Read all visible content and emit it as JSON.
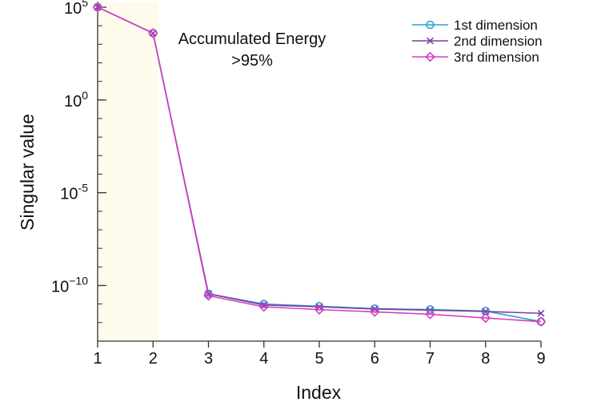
{
  "chart_data": {
    "type": "line",
    "xlabel": "Index",
    "ylabel": "Singular value",
    "y_scale": "log",
    "xlim": [
      1,
      9
    ],
    "ylim_exp": [
      -13,
      5.3
    ],
    "x_ticks": [
      "1",
      "2",
      "3",
      "4",
      "5",
      "6",
      "7",
      "8",
      "9"
    ],
    "y_ticks": [
      {
        "base": "10",
        "exp": "5",
        "value_exp": 5
      },
      {
        "base": "10",
        "exp": "0",
        "value_exp": 0
      },
      {
        "base": "10",
        "exp": "-5",
        "value_exp": -5
      },
      {
        "base": "10",
        "exp": "−10",
        "value_exp": -10
      }
    ],
    "x": [
      1,
      2,
      3,
      4,
      5,
      6,
      7,
      8,
      9
    ],
    "series": [
      {
        "name": "1st dimension",
        "marker": "circle",
        "color": "#2a9fd6",
        "y_exp": [
          5.0,
          3.6,
          -10.45,
          -11.0,
          -11.12,
          -11.25,
          -11.3,
          -11.38,
          -11.95
        ]
      },
      {
        "name": "2nd dimension",
        "marker": "x",
        "color": "#7b3fa0",
        "y_exp": [
          5.0,
          3.6,
          -10.45,
          -11.05,
          -11.15,
          -11.27,
          -11.33,
          -11.4,
          -11.5
        ]
      },
      {
        "name": "3rd dimension",
        "marker": "diamond",
        "color": "#d63ec2",
        "y_exp": [
          5.0,
          3.6,
          -10.55,
          -11.15,
          -11.3,
          -11.42,
          -11.55,
          -11.75,
          -11.95
        ]
      }
    ],
    "shaded_region": {
      "x_range": [
        1,
        2.1
      ],
      "color": "#fefbec"
    },
    "annotation": {
      "line1": "Accumulated Energy",
      "line2": ">95%"
    },
    "grid": false,
    "legend_position": "top-right"
  }
}
